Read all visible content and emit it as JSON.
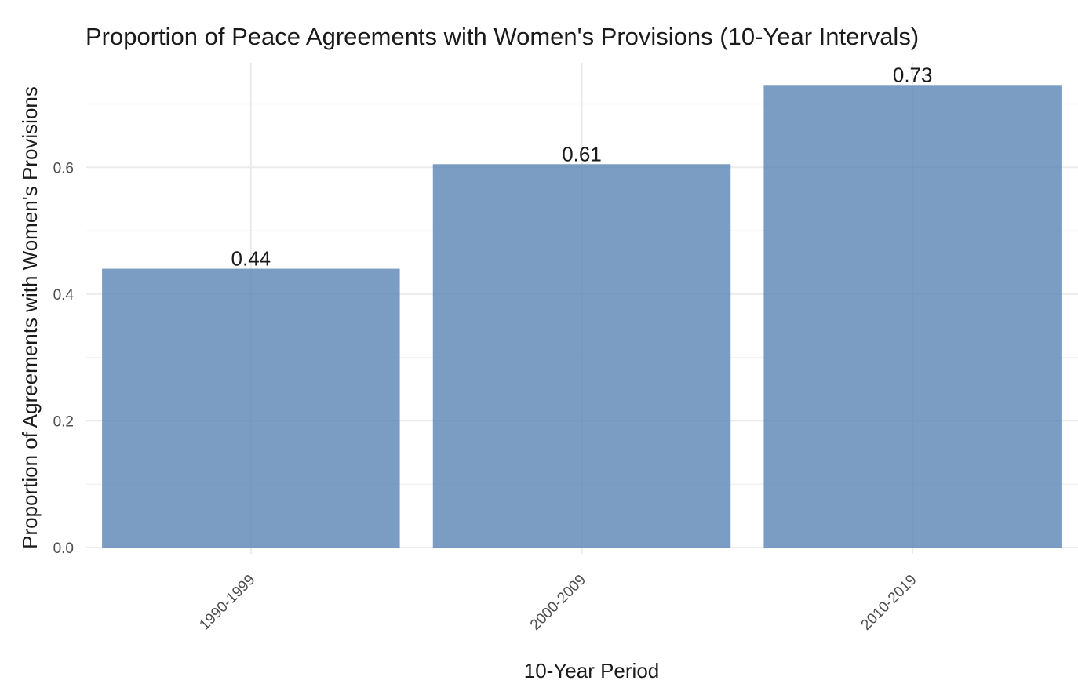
{
  "chart_data": {
    "type": "bar",
    "title": "Proportion of Peace Agreements with Women's Provisions (10-Year Intervals)",
    "xlabel": "10-Year Period",
    "ylabel": "Proportion of Agreements with Women's Provisions",
    "categories": [
      "1990-1999",
      "2000-2009",
      "2010-2019"
    ],
    "values": [
      0.44,
      0.605,
      0.73
    ],
    "data_labels": [
      "0.44",
      "0.61",
      "0.73"
    ],
    "ylim": [
      0,
      0.765
    ],
    "yticks": [
      0.0,
      0.2,
      0.4,
      0.6
    ],
    "ytick_labels": [
      "0.0",
      "0.2",
      "0.4",
      "0.6"
    ],
    "grid": true,
    "legend": "none",
    "colors": {
      "bar": "#5a84b4",
      "grid": "#ebebeb"
    }
  }
}
